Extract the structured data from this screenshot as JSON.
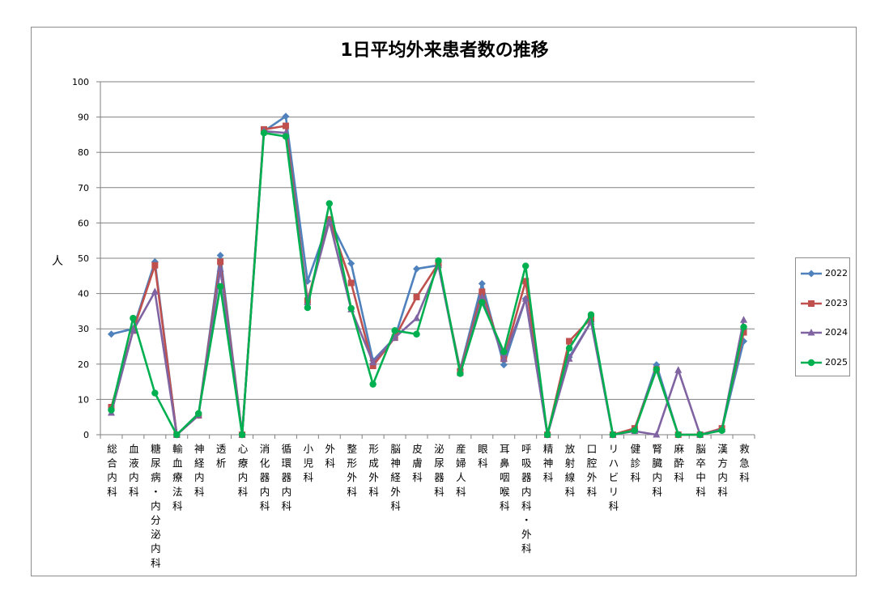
{
  "chart_data": {
    "type": "line",
    "title": "1日平均外来患者数の推移",
    "xlabel": "",
    "ylabel": "人",
    "ylim": [
      0,
      100
    ],
    "yticks": [
      0,
      10,
      20,
      30,
      40,
      50,
      60,
      70,
      80,
      90,
      100
    ],
    "grid": true,
    "legend": "right",
    "categories": [
      "総合内科",
      "血液内科",
      "糖尿病・内分泌内科",
      "輸血療法科",
      "神経内科",
      "透析",
      "心療内科",
      "消化器内科",
      "循環器内科",
      "小児科",
      "外科",
      "整形外科",
      "形成外科",
      "脳神経外科",
      "皮膚科",
      "泌尿器科",
      "産婦人科",
      "眼科",
      "耳鼻咽喉科",
      "呼吸器内科・外科",
      "精神科",
      "放射線科",
      "口腔外科",
      "リハビリ科",
      "健診科",
      "腎臓内科",
      "麻酔科",
      "脳卒中科",
      "漢方内科",
      "救急科"
    ],
    "series": [
      {
        "name": "2022",
        "color": "#4f81bd",
        "marker": "diamond",
        "values": [
          28.5,
          30,
          49,
          0,
          5.5,
          50.8,
          0,
          86,
          90.2,
          43.5,
          61,
          48.5,
          21,
          27.5,
          47,
          48,
          18.5,
          42.8,
          19.8,
          38.5,
          0,
          22,
          32,
          0,
          1.5,
          19.8,
          0,
          0,
          1.5,
          26.5
        ]
      },
      {
        "name": "2023",
        "color": "#c0504d",
        "marker": "square",
        "values": [
          7.8,
          29.5,
          48,
          0,
          5.5,
          49,
          0,
          86.5,
          87.5,
          38,
          61,
          43,
          19.5,
          27.5,
          39,
          48.5,
          18,
          40.5,
          21.5,
          43.5,
          0,
          26.5,
          33,
          0,
          1.8,
          18.5,
          0,
          0,
          1.8,
          29
        ]
      },
      {
        "name": "2024",
        "color": "#8064a2",
        "marker": "triangle",
        "values": [
          6.2,
          29.5,
          40.5,
          0,
          5.5,
          47,
          0,
          86,
          85.5,
          37.5,
          60.5,
          35.5,
          20.5,
          27.5,
          33,
          48,
          17.5,
          39,
          21.5,
          38.5,
          0,
          21.5,
          32,
          0,
          1,
          0,
          18.3,
          0,
          1.5,
          32.5
        ]
      },
      {
        "name": "2025",
        "color": "#00b050",
        "marker": "circle",
        "values": [
          7,
          33,
          11.8,
          0,
          6,
          42,
          0,
          85.5,
          84.5,
          36,
          65.5,
          35.8,
          14.3,
          29.5,
          28.5,
          49.3,
          17.3,
          37.5,
          23.5,
          47.8,
          0,
          24.5,
          34,
          0,
          1.2,
          18.5,
          0,
          0,
          1.2,
          30.5
        ]
      }
    ]
  }
}
